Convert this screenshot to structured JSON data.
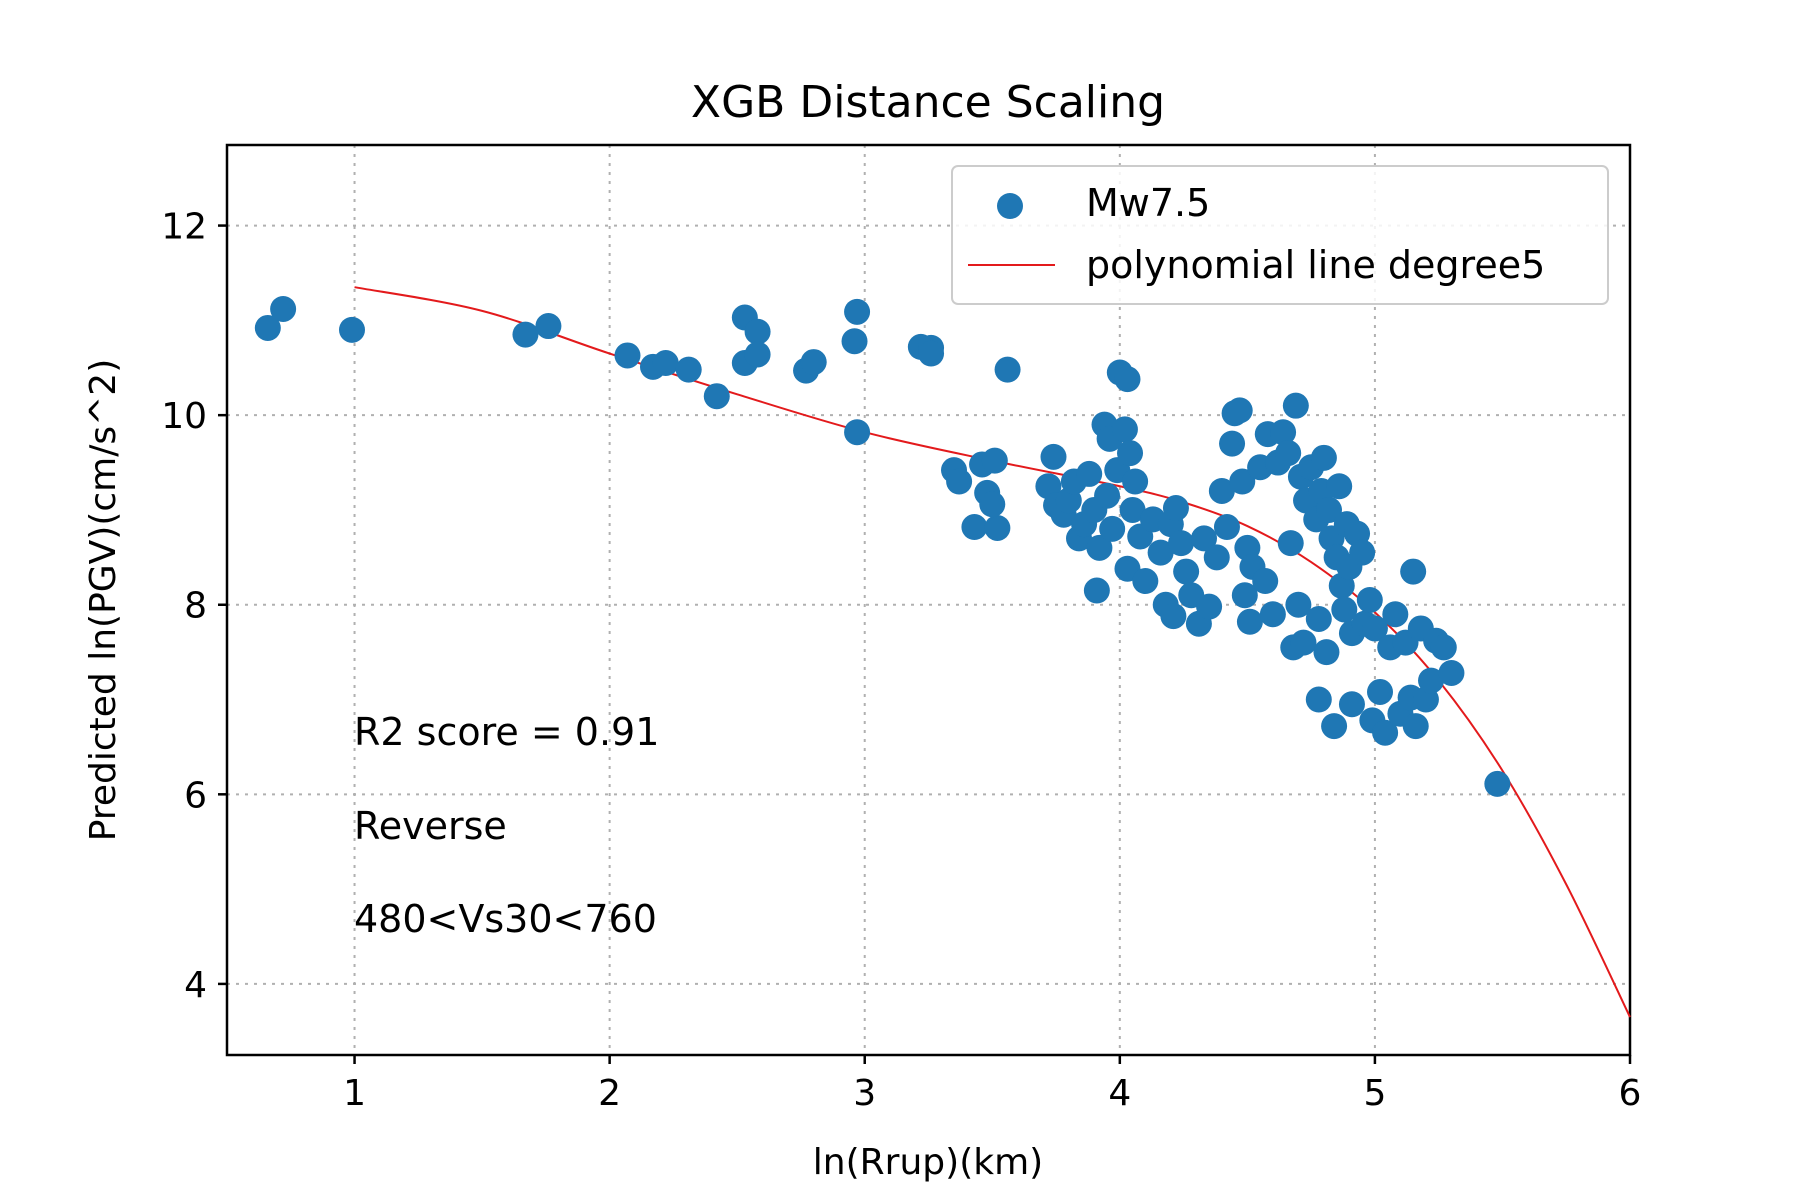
{
  "chart_data": {
    "type": "scatter",
    "title": "XGB Distance Scaling",
    "xlabel": "ln(Rrup)(km)",
    "ylabel": "Predicted ln(PGV)(cm/s^2)",
    "xlim": [
      0.5,
      6.0
    ],
    "ylim": [
      3.25,
      12.85
    ],
    "xticks": [
      1,
      2,
      3,
      4,
      5,
      6
    ],
    "yticks": [
      4,
      6,
      8,
      10,
      12
    ],
    "grid": true,
    "legend_position": "top-right",
    "annotations": [
      "R2 score = 0.91",
      "Reverse",
      "480<Vs30<760"
    ],
    "series": [
      {
        "name": "Mw7.5",
        "kind": "scatter",
        "color": "#1f77b4",
        "points": [
          [
            0.66,
            10.92
          ],
          [
            0.72,
            11.12
          ],
          [
            0.99,
            10.9
          ],
          [
            1.67,
            10.85
          ],
          [
            1.76,
            10.94
          ],
          [
            2.07,
            10.63
          ],
          [
            2.17,
            10.51
          ],
          [
            2.22,
            10.55
          ],
          [
            2.31,
            10.48
          ],
          [
            2.42,
            10.2
          ],
          [
            2.53,
            11.03
          ],
          [
            2.58,
            10.88
          ],
          [
            2.53,
            10.55
          ],
          [
            2.58,
            10.64
          ],
          [
            2.77,
            10.47
          ],
          [
            2.8,
            10.56
          ],
          [
            2.97,
            11.09
          ],
          [
            2.96,
            10.78
          ],
          [
            2.97,
            9.82
          ],
          [
            3.22,
            10.72
          ],
          [
            3.26,
            10.71
          ],
          [
            3.26,
            10.65
          ],
          [
            3.56,
            10.48
          ],
          [
            3.35,
            9.42
          ],
          [
            3.37,
            9.3
          ],
          [
            3.46,
            9.48
          ],
          [
            3.51,
            9.52
          ],
          [
            3.43,
            8.82
          ],
          [
            3.52,
            8.81
          ],
          [
            3.48,
            9.18
          ],
          [
            3.5,
            9.06
          ],
          [
            3.74,
            9.56
          ],
          [
            3.72,
            9.25
          ],
          [
            3.75,
            9.05
          ],
          [
            3.78,
            8.95
          ],
          [
            3.8,
            9.1
          ],
          [
            3.82,
            9.3
          ],
          [
            3.84,
            8.7
          ],
          [
            3.86,
            8.85
          ],
          [
            3.88,
            9.38
          ],
          [
            3.9,
            9.0
          ],
          [
            3.92,
            8.6
          ],
          [
            3.95,
            9.15
          ],
          [
            3.97,
            8.8
          ],
          [
            3.99,
            9.42
          ],
          [
            3.91,
            8.15
          ],
          [
            3.94,
            9.9
          ],
          [
            3.96,
            9.75
          ],
          [
            4.0,
            10.45
          ],
          [
            4.03,
            10.38
          ],
          [
            4.02,
            9.85
          ],
          [
            4.04,
            9.6
          ],
          [
            4.06,
            9.3
          ],
          [
            4.05,
            9.0
          ],
          [
            4.08,
            8.72
          ],
          [
            4.03,
            8.38
          ],
          [
            4.1,
            8.25
          ],
          [
            4.13,
            8.9
          ],
          [
            4.16,
            8.55
          ],
          [
            4.18,
            8.0
          ],
          [
            4.2,
            8.85
          ],
          [
            4.21,
            7.88
          ],
          [
            4.22,
            9.02
          ],
          [
            4.24,
            8.65
          ],
          [
            4.26,
            8.35
          ],
          [
            4.28,
            8.1
          ],
          [
            4.31,
            7.8
          ],
          [
            4.33,
            8.7
          ],
          [
            4.35,
            7.98
          ],
          [
            4.38,
            8.5
          ],
          [
            4.4,
            9.2
          ],
          [
            4.42,
            8.82
          ],
          [
            4.44,
            9.7
          ],
          [
            4.45,
            10.02
          ],
          [
            4.47,
            10.05
          ],
          [
            4.48,
            9.3
          ],
          [
            4.5,
            8.6
          ],
          [
            4.49,
            8.1
          ],
          [
            4.52,
            8.4
          ],
          [
            4.51,
            7.82
          ],
          [
            4.55,
            9.45
          ],
          [
            4.57,
            8.25
          ],
          [
            4.58,
            9.8
          ],
          [
            4.6,
            7.9
          ],
          [
            4.62,
            9.5
          ],
          [
            4.64,
            9.82
          ],
          [
            4.66,
            9.6
          ],
          [
            4.67,
            8.65
          ],
          [
            4.68,
            7.55
          ],
          [
            4.69,
            10.1
          ],
          [
            4.7,
            8.0
          ],
          [
            4.71,
            9.35
          ],
          [
            4.72,
            7.6
          ],
          [
            4.73,
            9.1
          ],
          [
            4.75,
            9.45
          ],
          [
            4.77,
            8.9
          ],
          [
            4.78,
            7.85
          ],
          [
            4.79,
            9.2
          ],
          [
            4.8,
            9.55
          ],
          [
            4.81,
            7.5
          ],
          [
            4.82,
            9.0
          ],
          [
            4.83,
            8.7
          ],
          [
            4.84,
            6.72
          ],
          [
            4.85,
            8.5
          ],
          [
            4.86,
            9.25
          ],
          [
            4.87,
            8.2
          ],
          [
            4.88,
            7.95
          ],
          [
            4.89,
            8.85
          ],
          [
            4.9,
            8.4
          ],
          [
            4.91,
            7.7
          ],
          [
            4.93,
            8.75
          ],
          [
            4.95,
            8.55
          ],
          [
            4.96,
            7.8
          ],
          [
            4.98,
            8.05
          ],
          [
            4.99,
            6.78
          ],
          [
            5.0,
            7.75
          ],
          [
            5.02,
            7.08
          ],
          [
            5.04,
            6.65
          ],
          [
            5.06,
            7.55
          ],
          [
            5.08,
            7.9
          ],
          [
            5.1,
            6.85
          ],
          [
            5.12,
            7.6
          ],
          [
            5.14,
            7.02
          ],
          [
            5.15,
            8.35
          ],
          [
            5.16,
            6.72
          ],
          [
            5.18,
            7.75
          ],
          [
            5.2,
            7.0
          ],
          [
            5.22,
            7.2
          ],
          [
            5.24,
            7.62
          ],
          [
            5.27,
            7.55
          ],
          [
            5.3,
            7.28
          ],
          [
            4.78,
            7.0
          ],
          [
            4.91,
            6.95
          ],
          [
            5.48,
            6.11
          ]
        ]
      },
      {
        "name": "polynomial line degree5",
        "kind": "line",
        "color": "#e31a1c",
        "points": [
          [
            1.0,
            11.35
          ],
          [
            1.5,
            11.1
          ],
          [
            2.0,
            10.65
          ],
          [
            2.5,
            10.22
          ],
          [
            3.0,
            9.82
          ],
          [
            3.5,
            9.52
          ],
          [
            4.0,
            9.25
          ],
          [
            4.25,
            9.08
          ],
          [
            4.5,
            8.83
          ],
          [
            4.75,
            8.45
          ],
          [
            5.0,
            7.92
          ],
          [
            5.25,
            7.2
          ],
          [
            5.5,
            6.25
          ],
          [
            5.75,
            5.05
          ],
          [
            6.0,
            3.65
          ]
        ]
      }
    ]
  }
}
